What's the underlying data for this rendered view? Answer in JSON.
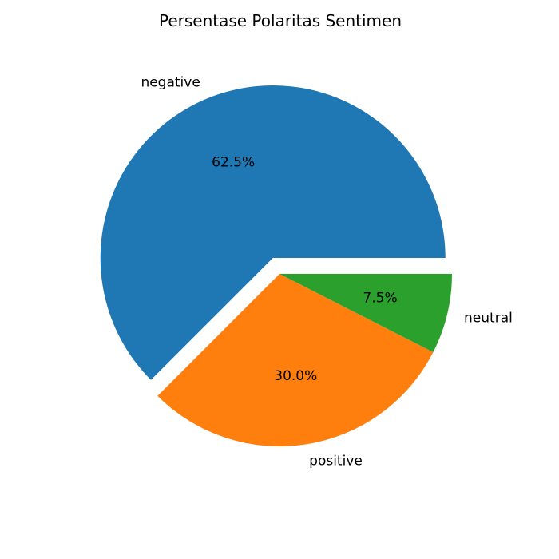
{
  "chart_data": {
    "type": "pie",
    "title": "Persentase Polaritas Sentimen",
    "slices": [
      {
        "label": "negative",
        "value": 62.5,
        "pct_label": "62.5%",
        "color": "#1f77b4",
        "exploded": true
      },
      {
        "label": "positive",
        "value": 30.0,
        "pct_label": "30.0%",
        "color": "#ff7f0e",
        "exploded": false
      },
      {
        "label": "neutral",
        "value": 7.5,
        "pct_label": "7.5%",
        "color": "#2ca02c",
        "exploded": false
      }
    ],
    "start_angle_deg": 0,
    "direction": "counterclockwise",
    "legend": "none"
  }
}
